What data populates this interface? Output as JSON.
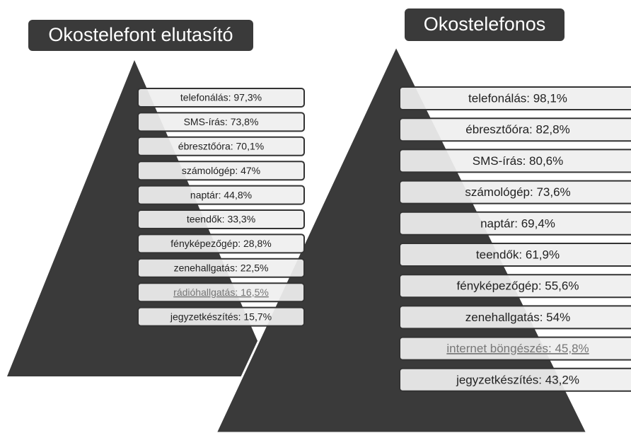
{
  "panels": [
    {
      "title": "Okostelefont elutasító",
      "items": [
        "telefonálás: 97,3%",
        "SMS-írás: 73,8%",
        "ébresztőóra: 70,1%",
        "számológép: 47%",
        "naptár: 44,8%",
        "teendők: 33,3%",
        "fényképezőgép: 28,8%",
        "zenehallgatás: 22,5%",
        "rádióhallgatás: 16,5%",
        "jegyzetkészítés: 15,7%"
      ]
    },
    {
      "title": "Okostelefonos",
      "items": [
        "telefonálás: 98,1%",
        "ébresztőóra: 82,8%",
        "SMS-írás: 80,6%",
        "számológép: 73,6%",
        "naptár: 69,4%",
        "teendők: 61,9%",
        "fényképezőgép: 55,6%",
        "zenehallgatás: 54%",
        "internet böngészés: 45,8%",
        "jegyzetkészítés: 43,2%"
      ]
    }
  ]
}
